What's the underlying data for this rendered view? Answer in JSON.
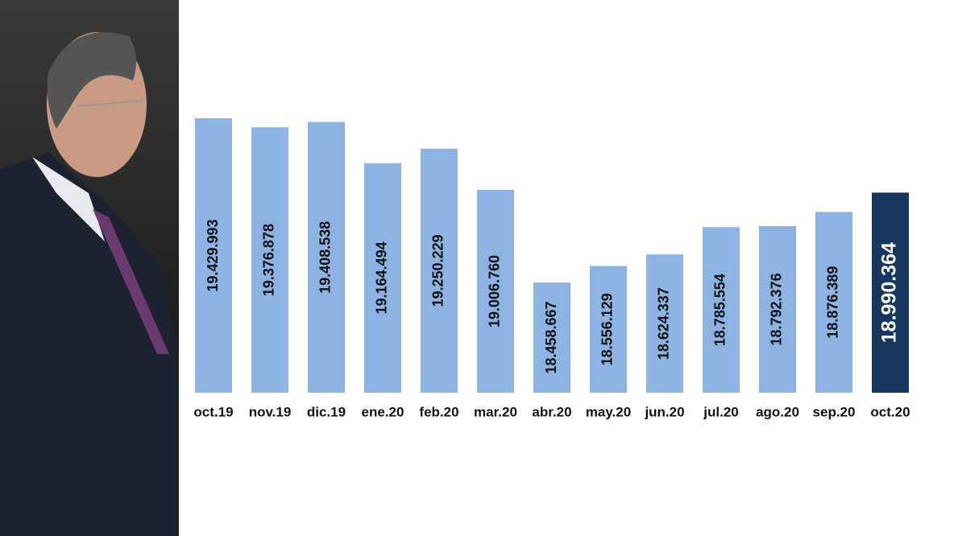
{
  "chart_data": {
    "type": "bar",
    "categories": [
      "oct.19",
      "nov.19",
      "dic.19",
      "ene.20",
      "feb.20",
      "mar.20",
      "abr.20",
      "may.20",
      "jun.20",
      "jul.20",
      "ago.20",
      "sep.20",
      "oct.20"
    ],
    "values": [
      19429993,
      19376878,
      19408538,
      19164494,
      19250229,
      19006760,
      18458667,
      18556129,
      18624337,
      18785554,
      18792376,
      18876389,
      18990364
    ],
    "value_labels": [
      "19.429.993",
      "19.376.878",
      "19.408.538",
      "19.164.494",
      "19.250.229",
      "19.006.760",
      "18.458.667",
      "18.556.129",
      "18.624.337",
      "18.785.554",
      "18.792.376",
      "18.876.389",
      "18.990.364"
    ],
    "colors": [
      "#8db3e2",
      "#8db3e2",
      "#8db3e2",
      "#8db3e2",
      "#8db3e2",
      "#8db3e2",
      "#8db3e2",
      "#8db3e2",
      "#8db3e2",
      "#8db3e2",
      "#8db3e2",
      "#8db3e2",
      "#17375e"
    ]
  }
}
